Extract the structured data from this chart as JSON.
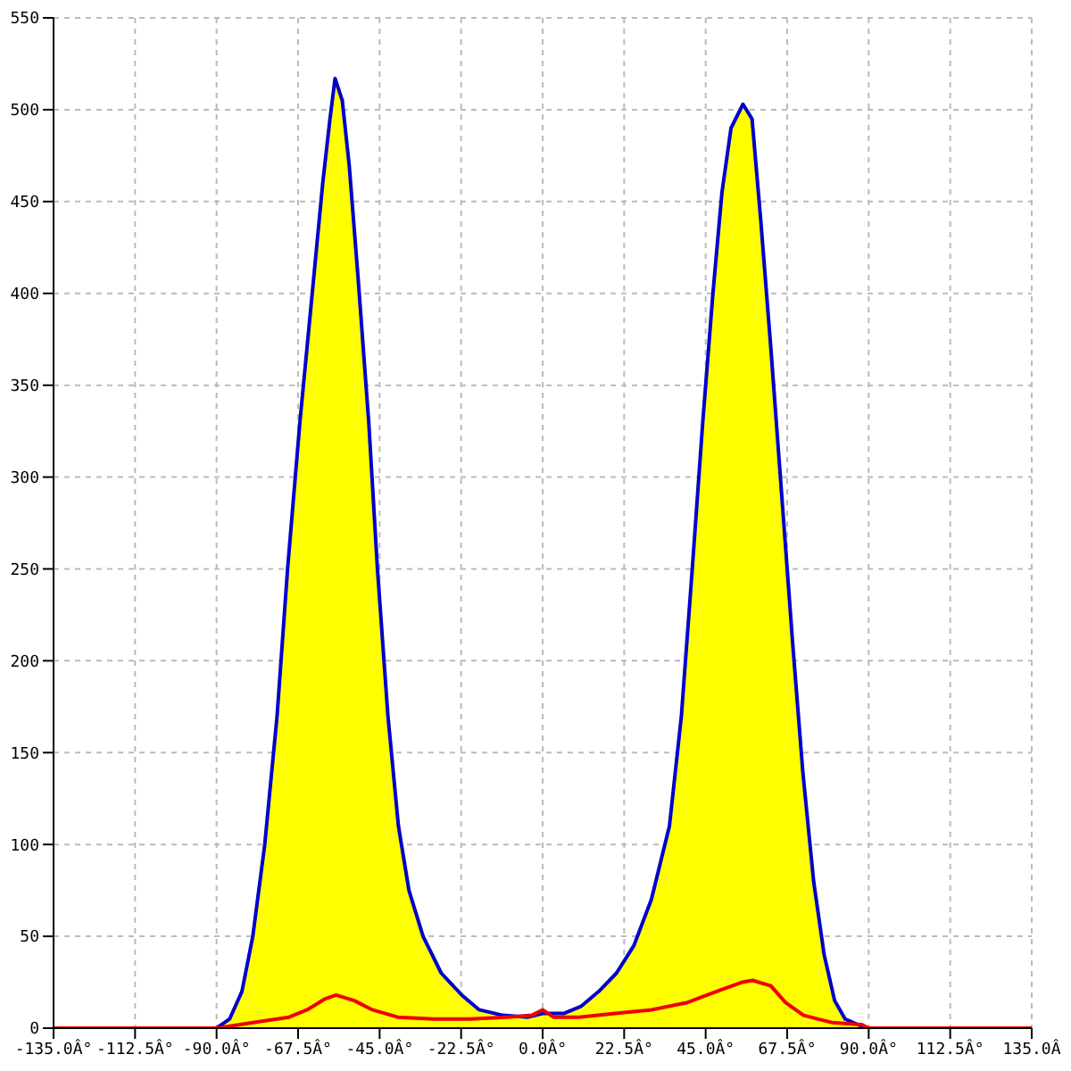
{
  "chart_data": {
    "type": "area",
    "series": [
      {
        "color": "#ffff00",
        "x": [
          -90,
          -86.4,
          -83,
          -80,
          -76.7,
          -73.3,
          -70.4,
          -67,
          -63.6,
          -60.7,
          -58.7,
          -57.3,
          -55.3,
          -53.4,
          -51,
          -48,
          -45.6,
          -42.7,
          -39.8,
          -36.9,
          -33,
          -28,
          -22.3,
          -17.5,
          -11,
          -4,
          0,
          5.8,
          10.7,
          15.5,
          20.4,
          25.2,
          30,
          35,
          38.3,
          41.3,
          44.2,
          47,
          49.5,
          52,
          55.3,
          57.8,
          60.2,
          63,
          66,
          69,
          71.8,
          74.8,
          77.7,
          80.6,
          83.5,
          89.3
        ],
        "values": [
          0,
          5,
          20,
          50,
          100,
          170,
          250,
          330,
          400,
          460,
          495,
          517,
          505,
          470,
          410,
          330,
          250,
          170,
          110,
          75,
          50,
          30,
          18,
          10,
          7,
          6,
          8,
          8,
          12,
          20,
          30,
          45,
          70,
          110,
          170,
          250,
          330,
          400,
          455,
          490,
          503,
          495,
          440,
          370,
          290,
          210,
          140,
          80,
          40,
          15,
          5,
          0
        ]
      },
      {
        "type": "line",
        "color": "#ee0000",
        "x": [
          -135,
          -90,
          -80,
          -70,
          -65,
          -60,
          -57,
          -52,
          -47,
          -40,
          -30,
          -20,
          -10,
          -3,
          0,
          3,
          10,
          20,
          30,
          40,
          48,
          55,
          58,
          63,
          67,
          72,
          80,
          88,
          90,
          135
        ],
        "values": [
          0,
          0,
          3,
          6,
          10,
          16,
          18,
          15,
          10,
          6,
          5,
          5,
          6,
          7,
          10,
          6,
          6,
          8,
          10,
          14,
          20,
          25,
          26,
          23,
          14,
          7,
          3,
          2,
          0,
          0
        ]
      }
    ],
    "xlim": [
      -135,
      135
    ],
    "xticks": [
      {
        "value": -135,
        "label": "-135.0Â°"
      },
      {
        "value": -112.5,
        "label": "-112.5Â°"
      },
      {
        "value": -90,
        "label": "-90.0Â°"
      },
      {
        "value": -67.5,
        "label": "-67.5Â°"
      },
      {
        "value": -45,
        "label": "-45.0Â°"
      },
      {
        "value": -22.5,
        "label": "-22.5Â°"
      },
      {
        "value": 0,
        "label": "0.0Â°"
      },
      {
        "value": 22.5,
        "label": "22.5Â°"
      },
      {
        "value": 45,
        "label": "45.0Â°"
      },
      {
        "value": 67.5,
        "label": "67.5Â°"
      },
      {
        "value": 90,
        "label": "90.0Â°"
      },
      {
        "value": 112.5,
        "label": "112.5Â°"
      },
      {
        "value": 135,
        "label": "135.0Â"
      }
    ],
    "ylim": [
      0,
      550
    ],
    "yticks": [
      0,
      50,
      100,
      150,
      200,
      250,
      300,
      350,
      400,
      450,
      500,
      550
    ],
    "grid": true,
    "marker": "none",
    "line_style": "solid"
  }
}
